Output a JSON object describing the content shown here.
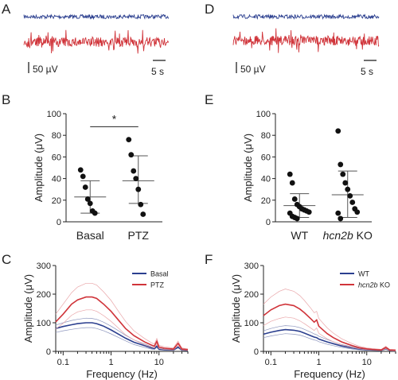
{
  "panels": {
    "A": "A",
    "B": "B",
    "C": "C",
    "D": "D",
    "E": "E",
    "F": "F"
  },
  "colors": {
    "blue": "#2b3f8f",
    "red": "#d0343a",
    "red_band": "#e9a5a8",
    "blue_band": "#8c95bd",
    "dark": "#222222"
  },
  "traces": {
    "A": {
      "scale_amp": "50 µV",
      "scale_time": "5 s",
      "rows": [
        "blue",
        "red"
      ]
    },
    "D": {
      "scale_amp": "50 µV",
      "scale_time": "5 s",
      "rows": [
        "blue",
        "red"
      ]
    }
  },
  "chart_data": [
    {
      "id": "B",
      "type": "scatter",
      "ylabel": "Amplitude (μV)",
      "ylim": [
        0,
        100
      ],
      "yticks": [
        0,
        20,
        40,
        60,
        80,
        100
      ],
      "categories": [
        "Basal",
        "PTZ"
      ],
      "series": [
        {
          "values": [
            [
              48,
              42,
              32,
              21,
              17,
              10,
              8
            ],
            [
              76,
              62,
              47,
              40,
              30,
              16,
              7
            ]
          ]
        }
      ],
      "summary": [
        {
          "mean": 23,
          "sd_low": 8,
          "sd_high": 38
        },
        {
          "mean": 38,
          "sd_low": 17,
          "sd_high": 61
        }
      ],
      "annotation": "*"
    },
    {
      "id": "E",
      "type": "scatter",
      "ylabel": "Amplitude (μV)",
      "ylim": [
        0,
        100
      ],
      "yticks": [
        0,
        20,
        40,
        60,
        80,
        100
      ],
      "categories": [
        "WT",
        "KO"
      ],
      "category_parts": [
        {
          "italic": "",
          "plain": "WT"
        },
        {
          "italic": "hcn2b",
          "plain": " KO"
        }
      ],
      "series": [
        {
          "values": [
            [
              44,
              36,
              21,
              16,
              14,
              12,
              11,
              10,
              9,
              8,
              5,
              4,
              3
            ],
            [
              84,
              53,
              44,
              36,
              30,
              24,
              18,
              12,
              9,
              8,
              3
            ]
          ]
        }
      ],
      "summary": [
        {
          "mean": 15,
          "sd_low": 4,
          "sd_high": 26
        },
        {
          "mean": 25,
          "sd_low": 4,
          "sd_high": 47
        }
      ]
    },
    {
      "id": "C",
      "type": "line",
      "xlabel": "Frequency (Hz)",
      "ylabel": "Amplitude (μV)",
      "xscale": "log",
      "xlim": [
        0.07,
        40
      ],
      "xticks": [
        0.1,
        1,
        10
      ],
      "xtick_labels": [
        "0.1",
        "1",
        "10"
      ],
      "ylim": [
        0,
        300
      ],
      "yticks": [
        0,
        100,
        200,
        300
      ],
      "legend": {
        "placement": "top-right",
        "entries": [
          {
            "name": "Basal",
            "italic": ""
          },
          {
            "name": "PTZ",
            "italic": ""
          }
        ]
      },
      "x": [
        0.07,
        0.1,
        0.15,
        0.2,
        0.3,
        0.4,
        0.5,
        0.7,
        1,
        1.5,
        2,
        3,
        5,
        7,
        8,
        9,
        10,
        13,
        20,
        25,
        30,
        40
      ],
      "series": [
        {
          "name": "Basal",
          "color": "blue",
          "values": [
            80,
            87,
            93,
            97,
            100,
            100,
            97,
            88,
            75,
            58,
            46,
            32,
            20,
            12,
            10,
            18,
            8,
            6,
            5,
            15,
            5,
            4
          ],
          "upper": [
            92,
            100,
            108,
            112,
            116,
            115,
            112,
            102,
            88,
            70,
            56,
            40,
            26,
            16,
            13,
            20,
            11,
            8,
            7,
            16,
            7,
            6
          ],
          "lower": [
            66,
            72,
            77,
            80,
            83,
            83,
            80,
            72,
            61,
            47,
            37,
            24,
            14,
            8,
            6,
            14,
            5,
            4,
            3,
            12,
            3,
            2
          ]
        },
        {
          "name": "PTZ",
          "color": "red",
          "values": [
            103,
            130,
            165,
            180,
            190,
            190,
            185,
            165,
            140,
            105,
            80,
            55,
            33,
            22,
            18,
            35,
            15,
            11,
            8,
            28,
            8,
            6
          ],
          "upper": [
            130,
            165,
            205,
            225,
            238,
            238,
            232,
            208,
            178,
            135,
            105,
            72,
            45,
            30,
            25,
            45,
            21,
            16,
            12,
            36,
            12,
            9
          ],
          "lower": [
            78,
            98,
            126,
            138,
            145,
            145,
            140,
            125,
            105,
            78,
            58,
            40,
            23,
            15,
            12,
            26,
            10,
            7,
            5,
            20,
            5,
            4
          ]
        }
      ]
    },
    {
      "id": "F",
      "type": "line",
      "xlabel": "Frequency (Hz)",
      "ylabel": "Amplitude (μV)",
      "xscale": "log",
      "xlim": [
        0.07,
        40
      ],
      "xticks": [
        0.1,
        1,
        10
      ],
      "xtick_labels": [
        "0.1",
        "1",
        "10"
      ],
      "ylim": [
        0,
        300
      ],
      "yticks": [
        0,
        100,
        200,
        300
      ],
      "legend": {
        "placement": "top-right",
        "entries": [
          {
            "name": "WT",
            "italic": ""
          },
          {
            "name": " KO",
            "italic": "hcn2b"
          }
        ]
      },
      "x": [
        0.07,
        0.1,
        0.15,
        0.2,
        0.3,
        0.4,
        0.5,
        0.7,
        0.8,
        0.9,
        1,
        1.5,
        2,
        3,
        5,
        7,
        10,
        13,
        20,
        25,
        30,
        40
      ],
      "series": [
        {
          "name": "WT",
          "color": "blue",
          "values": [
            60,
            67,
            73,
            76,
            74,
            70,
            64,
            54,
            50,
            48,
            43,
            33,
            27,
            19,
            12,
            8,
            6,
            5,
            4,
            10,
            4,
            3
          ],
          "upper": [
            72,
            80,
            87,
            90,
            88,
            83,
            77,
            66,
            61,
            58,
            53,
            41,
            34,
            24,
            16,
            11,
            8,
            7,
            6,
            12,
            6,
            5
          ],
          "lower": [
            48,
            54,
            59,
            62,
            60,
            57,
            52,
            43,
            40,
            38,
            34,
            25,
            20,
            14,
            8,
            5,
            4,
            3,
            2,
            7,
            2,
            1
          ]
        },
        {
          "name": "hcn2b KO",
          "color": "red",
          "values": [
            125,
            145,
            160,
            165,
            160,
            148,
            135,
            112,
            102,
            110,
            88,
            62,
            48,
            33,
            20,
            13,
            9,
            7,
            5,
            14,
            5,
            4
          ],
          "upper": [
            165,
            190,
            210,
            218,
            210,
            195,
            178,
            148,
            135,
            140,
            115,
            82,
            64,
            44,
            27,
            18,
            12,
            10,
            7,
            18,
            7,
            6
          ],
          "lower": [
            90,
            105,
            115,
            120,
            116,
            107,
            97,
            80,
            73,
            82,
            63,
            44,
            34,
            23,
            14,
            9,
            6,
            5,
            3,
            10,
            3,
            2
          ]
        }
      ]
    }
  ]
}
